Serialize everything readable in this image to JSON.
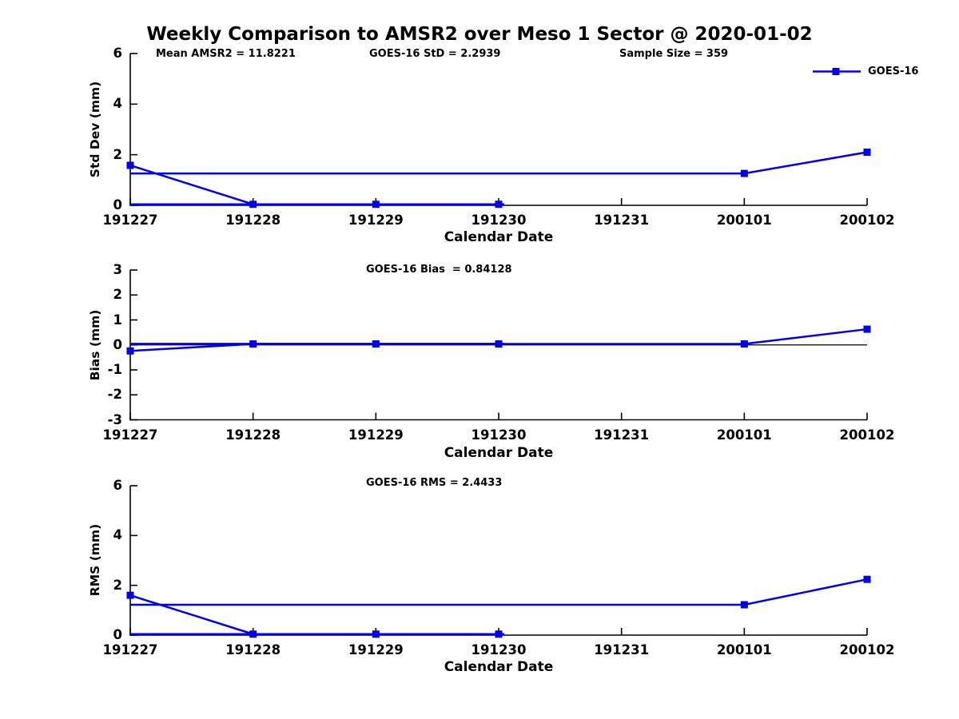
{
  "chart_data": {
    "type": "line",
    "title": "Weekly Comparison to AMSR2 over Meso 1 Sector @ 2020-01-02",
    "annotations": [
      "Mean AMSR2 = 11.8221",
      "GOES-16 StD = 2.2939",
      "Sample Size = 359"
    ],
    "categories": [
      "191227",
      "191228",
      "191229",
      "191230",
      "191231",
      "200101",
      "200102"
    ],
    "xlabel": "Calendar Date",
    "legend": {
      "label": "GOES-16",
      "position": "top-right",
      "marker": "filled-square"
    },
    "line_color": "#0000EE",
    "axis_color": "#000000",
    "grid": false,
    "panels": [
      {
        "name": "std-dev",
        "ylabel": "Std Dev (mm)",
        "ylim": [
          0,
          6
        ],
        "yticks": [
          0,
          2,
          4,
          6
        ],
        "series": [
          {
            "name": "GOES-16",
            "values": [
              1.58,
              0.04,
              0.04,
              0.04,
              null,
              1.26,
              2.1
            ]
          }
        ],
        "flat_line": {
          "value": 0.04,
          "from": "191227",
          "to": "191230"
        },
        "reference_line": {
          "value": 1.26,
          "from": "191227",
          "to": "200101"
        },
        "zero_line": false
      },
      {
        "name": "bias",
        "stat": "GOES-16 Bias  = 0.84128",
        "ylabel": "Bias (mm)",
        "ylim": [
          -3,
          3
        ],
        "yticks": [
          3,
          2,
          1,
          0,
          -1,
          -2,
          -3
        ],
        "series": [
          {
            "name": "GOES-16",
            "values": [
              -0.24,
              0.04,
              0.04,
              0.04,
              null,
              0.04,
              0.63
            ]
          }
        ],
        "flat_line": {
          "value": 0.04,
          "from": "191227",
          "to": "191230"
        },
        "reference_line": {
          "value": 0.04,
          "from": "191227",
          "to": "200101"
        },
        "zero_line": true
      },
      {
        "name": "rms",
        "stat": "GOES-16 RMS = 2.4433",
        "ylabel": "RMS (mm)",
        "ylim": [
          0,
          6
        ],
        "yticks": [
          0,
          2,
          4,
          6
        ],
        "series": [
          {
            "name": "GOES-16",
            "values": [
              1.6,
              0.04,
              0.04,
              0.04,
              null,
              1.22,
              2.24
            ]
          }
        ],
        "flat_line": {
          "value": 0.04,
          "from": "191227",
          "to": "191230"
        },
        "reference_line": {
          "value": 1.22,
          "from": "191227",
          "to": "200101"
        },
        "zero_line": false
      }
    ]
  }
}
